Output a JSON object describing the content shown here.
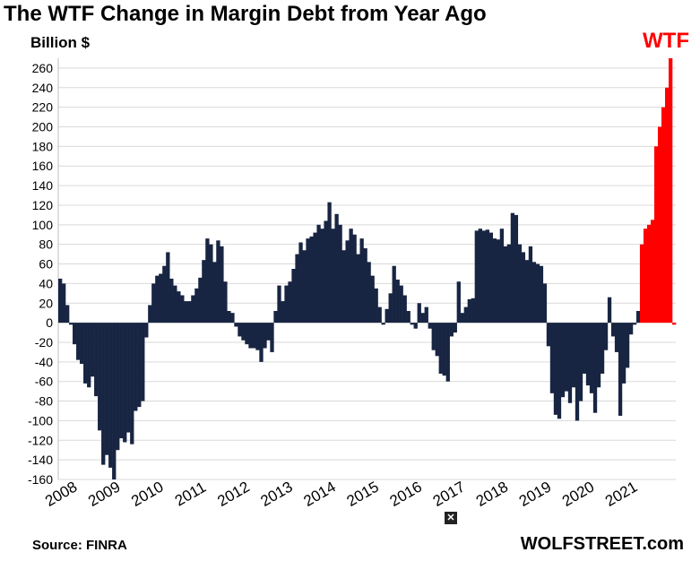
{
  "header": {
    "title": "The WTF Change in Margin Debt from Year Ago",
    "unit_label": "Billion $",
    "annotation": "WTF"
  },
  "footer": {
    "source": "Source: FINRA",
    "brand": "WOLFSTREET.com",
    "close_symbol": "✕"
  },
  "colors": {
    "positive_bar": "#182542",
    "negative_bar": "#182542",
    "highlight_bar": "#ff0000",
    "grid": "#d9d9d9"
  },
  "chart_data": {
    "type": "bar",
    "title": "The WTF Change in Margin Debt from Year Ago",
    "ylabel": "Billion $",
    "xlabel": "",
    "ylim": [
      -160,
      270
    ],
    "yticks": [
      -160,
      -140,
      -120,
      -100,
      -80,
      -60,
      -40,
      -20,
      0,
      20,
      40,
      60,
      80,
      100,
      120,
      140,
      160,
      180,
      200,
      220,
      240,
      260
    ],
    "xtick_labels": [
      "2008",
      "2009",
      "2010",
      "2011",
      "2012",
      "2013",
      "2014",
      "2015",
      "2016",
      "2017",
      "2018",
      "2019",
      "2020",
      "2021"
    ],
    "grid": true,
    "annotation": "WTF",
    "x_start": "2008-01",
    "frequency": "monthly",
    "series": [
      {
        "values": [
          45,
          40,
          18,
          -2,
          -22,
          -38,
          -42,
          -62,
          -66,
          -55,
          -75,
          -110,
          -145,
          -135,
          -148,
          -160,
          -130,
          -118,
          -122,
          -112,
          -124,
          -90,
          -86,
          -80,
          -15,
          18,
          40,
          48,
          50,
          58,
          72,
          45,
          38,
          32,
          28,
          22,
          22,
          28,
          35,
          46,
          64,
          86,
          80,
          62,
          84,
          78,
          42,
          12,
          10,
          -4,
          -14,
          -18,
          -22,
          -26,
          -26,
          -28,
          -40,
          -26,
          -18,
          -30,
          12,
          38,
          22,
          38,
          42,
          55,
          70,
          82,
          74,
          86,
          88,
          92,
          100,
          96,
          104,
          123,
          96,
          111,
          100,
          74,
          84,
          96,
          90,
          70,
          86,
          76,
          62,
          48,
          35,
          16,
          -2,
          14,
          30,
          58,
          44,
          38,
          28,
          12,
          -2,
          -6,
          20,
          10,
          16,
          -6,
          -28,
          -34,
          -52,
          -54,
          -60,
          -14,
          -10,
          42,
          10,
          16,
          24,
          25,
          94,
          96,
          94,
          95,
          92,
          86,
          85,
          96,
          78,
          80,
          112,
          110,
          80,
          72,
          64,
          78,
          62,
          60,
          58,
          40,
          -24,
          -72,
          -94,
          -98,
          -76,
          -70,
          -82,
          -66,
          -100,
          -80,
          -52,
          -64,
          -72,
          -92,
          -66,
          -52,
          -28,
          26,
          -14,
          -30,
          -95,
          -62,
          -46,
          -12,
          -2,
          12,
          80,
          96,
          100,
          105,
          180,
          200,
          220,
          240,
          270,
          -2
        ],
        "highlight_from_index": 162
      }
    ]
  }
}
